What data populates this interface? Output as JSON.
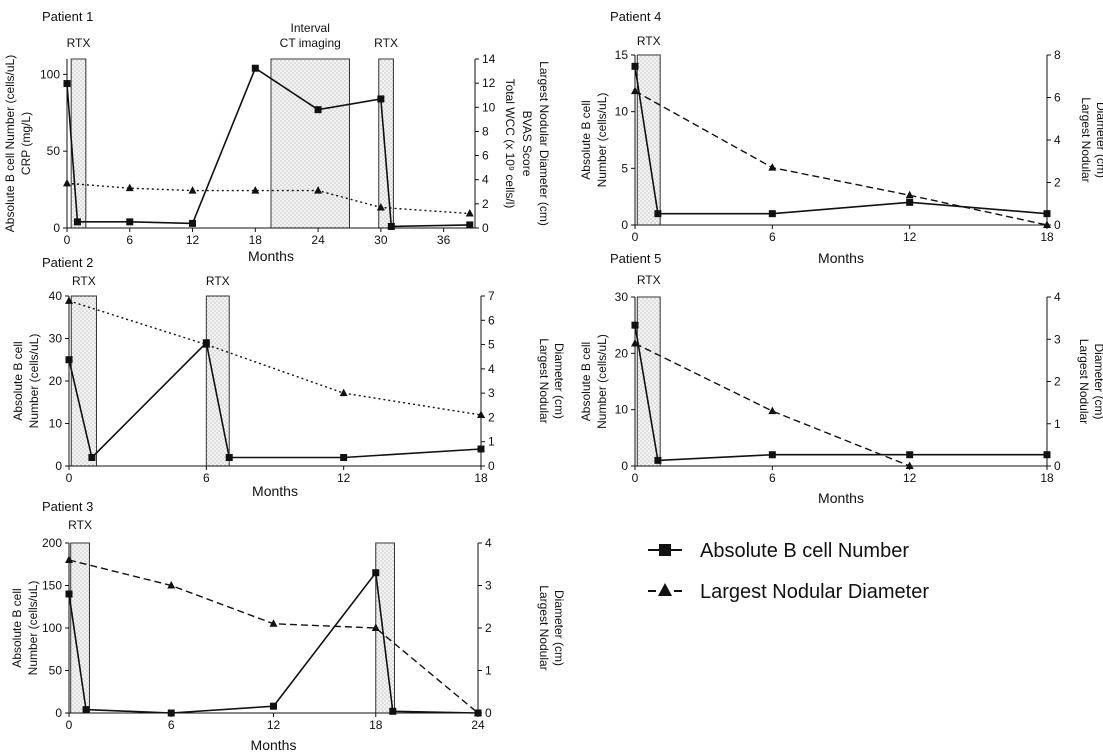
{
  "figure": {
    "legend": {
      "bcell_label": "Absolute B cell Number",
      "nodule_label": "Largest Nodular Diameter"
    }
  },
  "chart_data": [
    {
      "id": "p1",
      "type": "line",
      "title": "Patient 1",
      "xlabel": "Months",
      "ylabel_left": [
        "Absolute B cell Number (cells/uL)",
        "CRP (mg/L)"
      ],
      "ylabel_right": [
        "Largest Nodular Diameter (cm)",
        "BVAS Score",
        "Total WCC (x 10⁹ cells/l)"
      ],
      "xlim": [
        0,
        39
      ],
      "xticks": [
        0,
        6,
        12,
        18,
        24,
        30,
        36
      ],
      "ylim_left": [
        0,
        110
      ],
      "yticks_left": [
        0,
        50,
        100
      ],
      "ylim_right": [
        0,
        14
      ],
      "yticks_right": [
        0,
        2,
        4,
        6,
        8,
        10,
        12,
        14
      ],
      "shaded": [
        {
          "label": "RTX",
          "x0": 0.4,
          "x1": 1.8,
          "style": "dots"
        },
        {
          "label": "Interval\nCT imaging",
          "x0": 19.5,
          "x1": 27,
          "style": "dots"
        },
        {
          "label": "RTX",
          "x0": 29.8,
          "x1": 31.2,
          "style": "dots"
        }
      ],
      "series": [
        {
          "axis": "left",
          "marker": "square",
          "dash": "solid",
          "x": [
            0,
            1,
            6,
            12,
            18,
            24,
            30,
            31,
            38.5
          ],
          "values": [
            94,
            4,
            4,
            3,
            104,
            77,
            84,
            1,
            2
          ]
        },
        {
          "axis": "right",
          "marker": "triangle",
          "dash": "dotted",
          "x": [
            0,
            6,
            12,
            18,
            24,
            30,
            38.5
          ],
          "values": [
            3.7,
            3.3,
            3.1,
            3.1,
            3.1,
            1.7,
            1.2
          ]
        }
      ]
    },
    {
      "id": "p2",
      "type": "line",
      "title": "Patient 2",
      "xlabel": "Months",
      "ylabel_left": [
        "Absolute B cell",
        "Number (cells/uL)"
      ],
      "ylabel_right": [
        "Largest Nodular",
        "Diameter (cm)"
      ],
      "xlim": [
        0,
        18
      ],
      "xticks": [
        0,
        6,
        12,
        18
      ],
      "ylim_left": [
        0,
        40
      ],
      "yticks_left": [
        0,
        10,
        20,
        30,
        40
      ],
      "ylim_right": [
        0,
        7
      ],
      "yticks_right": [
        0,
        1,
        2,
        3,
        4,
        5,
        6,
        7
      ],
      "shaded": [
        {
          "label": "RTX",
          "x0": 0.1,
          "x1": 1.2,
          "style": "dots"
        },
        {
          "label": "RTX",
          "x0": 6,
          "x1": 7,
          "style": "dots"
        }
      ],
      "series": [
        {
          "axis": "left",
          "marker": "square",
          "dash": "solid",
          "x": [
            0,
            1,
            6,
            7,
            12,
            18
          ],
          "values": [
            25,
            2,
            29,
            2,
            2,
            4
          ]
        },
        {
          "axis": "right",
          "marker": "triangle",
          "dash": "dotted",
          "x": [
            0,
            6,
            12,
            18
          ],
          "values": [
            6.8,
            5.0,
            3.0,
            2.1
          ]
        }
      ]
    },
    {
      "id": "p3",
      "type": "line",
      "title": "Patient 3",
      "xlabel": "Months",
      "ylabel_left": [
        "Absolute B cell",
        "Number (cells/uL)"
      ],
      "ylabel_right": [
        "Largest Nodular",
        "Diameter (cm)"
      ],
      "xlim": [
        0,
        24
      ],
      "xticks": [
        0,
        6,
        12,
        18,
        24
      ],
      "ylim_left": [
        0,
        200
      ],
      "yticks_left": [
        0,
        50,
        100,
        150,
        200
      ],
      "ylim_right": [
        0,
        4
      ],
      "yticks_right": [
        0,
        1,
        2,
        3,
        4
      ],
      "shaded": [
        {
          "label": "RTX",
          "x0": 0.1,
          "x1": 1.2,
          "style": "dots"
        },
        {
          "label": "",
          "x0": 18,
          "x1": 19.1,
          "style": "dots"
        }
      ],
      "series": [
        {
          "axis": "left",
          "marker": "square",
          "dash": "solid",
          "x": [
            0,
            1,
            6,
            12,
            18,
            19,
            24
          ],
          "values": [
            140,
            4,
            0,
            8,
            165,
            2,
            0
          ]
        },
        {
          "axis": "right",
          "marker": "triangle",
          "dash": "dashed",
          "x": [
            0,
            6,
            12,
            18,
            24
          ],
          "values": [
            3.6,
            3.0,
            2.1,
            2.0,
            0
          ]
        }
      ]
    },
    {
      "id": "p4",
      "type": "line",
      "title": "Patient 4",
      "xlabel": "Months",
      "ylabel_left": [
        "Absolute B cell",
        "Number (cells/uL)"
      ],
      "ylabel_right": [
        "Largest Nodular",
        "Diameter (cm)"
      ],
      "xlim": [
        0,
        18
      ],
      "xticks": [
        0,
        6,
        12,
        18
      ],
      "ylim_left": [
        0,
        15
      ],
      "yticks_left": [
        0,
        5,
        10,
        15
      ],
      "ylim_right": [
        0,
        8
      ],
      "yticks_right": [
        0,
        2,
        4,
        6,
        8
      ],
      "shaded": [
        {
          "label": "RTX",
          "x0": 0.1,
          "x1": 1.1,
          "style": "dots"
        }
      ],
      "series": [
        {
          "axis": "left",
          "marker": "square",
          "dash": "solid",
          "x": [
            0,
            1,
            6,
            12,
            18
          ],
          "values": [
            14,
            1,
            1,
            2,
            1
          ]
        },
        {
          "axis": "right",
          "marker": "triangle",
          "dash": "dashed",
          "x": [
            0,
            6,
            12,
            18
          ],
          "values": [
            6.3,
            2.7,
            1.4,
            0
          ]
        }
      ]
    },
    {
      "id": "p5",
      "type": "line",
      "title": "Patient 5",
      "xlabel": "Months",
      "ylabel_left": [
        "Absolute B cell",
        "Number (cells/uL)"
      ],
      "ylabel_right": [
        "Largest Nodular",
        "Diameter (cm)"
      ],
      "xlim": [
        0,
        18
      ],
      "xticks": [
        0,
        6,
        12,
        18
      ],
      "ylim_left": [
        0,
        30
      ],
      "yticks_left": [
        0,
        10,
        20,
        30
      ],
      "ylim_right": [
        0,
        4
      ],
      "yticks_right": [
        0,
        1,
        2,
        3,
        4
      ],
      "shaded": [
        {
          "label": "RTX",
          "x0": 0.1,
          "x1": 1.1,
          "style": "dots"
        }
      ],
      "series": [
        {
          "axis": "left",
          "marker": "square",
          "dash": "solid",
          "x": [
            0,
            1,
            6,
            12,
            18
          ],
          "values": [
            25,
            1,
            2,
            2,
            2
          ]
        },
        {
          "axis": "right",
          "marker": "triangle",
          "dash": "dashed",
          "x": [
            0,
            6,
            12
          ],
          "values": [
            2.9,
            1.3,
            0
          ]
        }
      ]
    }
  ]
}
